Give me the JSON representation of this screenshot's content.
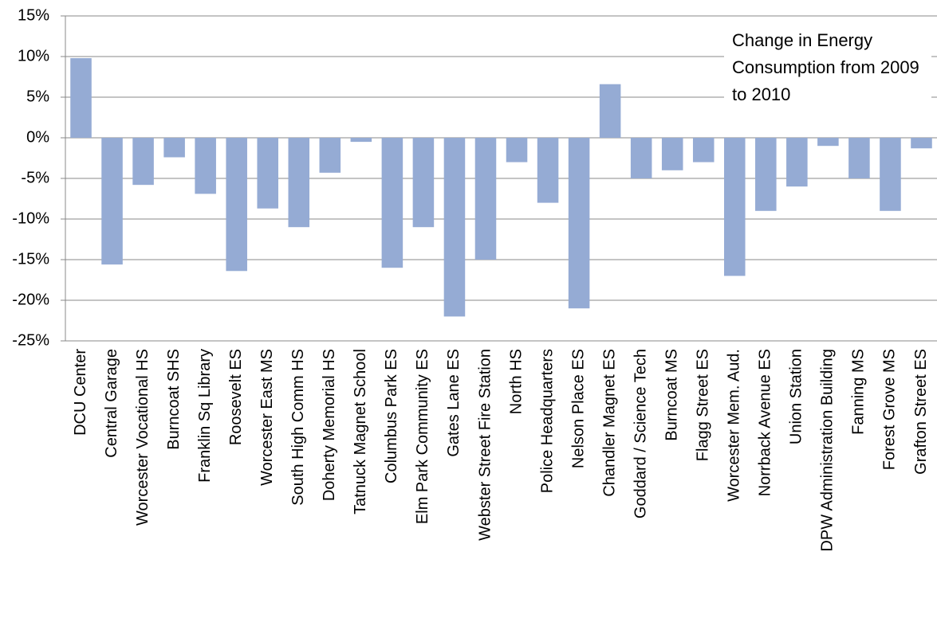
{
  "chart_data": {
    "type": "bar",
    "title": "Change in Energy Consumption from 2009 to 2010",
    "categories": [
      "DCU Center",
      "Central Garage",
      "Worcester Vocational HS",
      "Burncoat SHS",
      "Franklin Sq Library",
      "Roosevelt ES",
      "Worcester East MS",
      "South High Comm HS",
      "Doherty Memorial HS",
      "Tatnuck Magnet School",
      "Columbus Park ES",
      "Elm Park Community ES",
      "Gates Lane ES",
      "Webster Street Fire Station",
      "North HS",
      "Police Headquarters",
      "Nelson Place ES",
      "Chandler Magnet ES",
      "Goddard / Science Tech",
      "Burncoat MS",
      "Flagg Street ES",
      "Worcester Mem. Aud.",
      "Norrback Avenue ES",
      "Union Station",
      "DPW Administration Building",
      "Fanning MS",
      "Forest Grove MS",
      "Grafton Street ES"
    ],
    "values": [
      9.8,
      -15.6,
      -5.8,
      -2.4,
      -6.9,
      -16.4,
      -8.7,
      -11,
      -4.3,
      -0.5,
      -16,
      -11,
      -22,
      -15,
      -3,
      -8,
      -21,
      6.6,
      -5,
      -4,
      -3,
      -17,
      -9,
      -6,
      -1,
      -5,
      -9,
      -1.3
    ],
    "color": "#95abd4",
    "ylim": [
      -25,
      15
    ],
    "yticks": [
      {
        "value": -25,
        "label": "-25%"
      },
      {
        "value": -20,
        "label": "-20%"
      },
      {
        "value": -15,
        "label": "-15%"
      },
      {
        "value": -10,
        "label": "-10%"
      },
      {
        "value": -5,
        "label": "-5%"
      },
      {
        "value": 0,
        "label": "0%"
      },
      {
        "value": 5,
        "label": "5%"
      },
      {
        "value": 10,
        "label": "10%"
      },
      {
        "value": 15,
        "label": "15%"
      }
    ],
    "grid": true
  }
}
